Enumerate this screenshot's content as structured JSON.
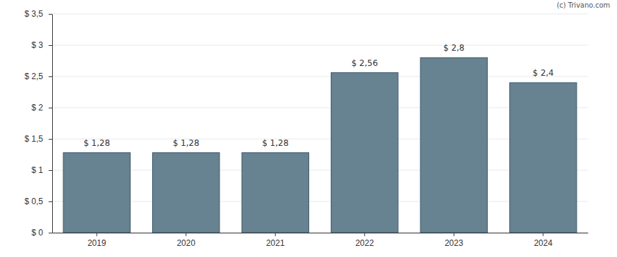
{
  "chart_data": {
    "type": "bar",
    "annotations": [
      "(c) Trivano.com"
    ],
    "categories": [
      "2019",
      "2020",
      "2021",
      "2022",
      "2023",
      "2024"
    ],
    "values": [
      1.28,
      1.28,
      1.28,
      2.56,
      2.8,
      2.4
    ],
    "value_labels": [
      "$ 1,28",
      "$ 1,28",
      "$ 1,28",
      "$ 2,56",
      "$ 2,8",
      "$ 2,4"
    ],
    "data_labels": true,
    "color": "#64808f",
    "ylim": [
      0,
      3.5
    ],
    "yticks": [
      {
        "value": 0,
        "label": "$ 0"
      },
      {
        "value": 0.5,
        "label": "$ 0,5"
      },
      {
        "value": 1,
        "label": "$ 1"
      },
      {
        "value": 1.5,
        "label": "$ 1,5"
      },
      {
        "value": 2,
        "label": "$ 2"
      },
      {
        "value": 2.5,
        "label": "$ 2,5"
      },
      {
        "value": 3,
        "label": "$ 3"
      },
      {
        "value": 3.5,
        "label": "$ 3,5"
      }
    ],
    "grid": true
  }
}
